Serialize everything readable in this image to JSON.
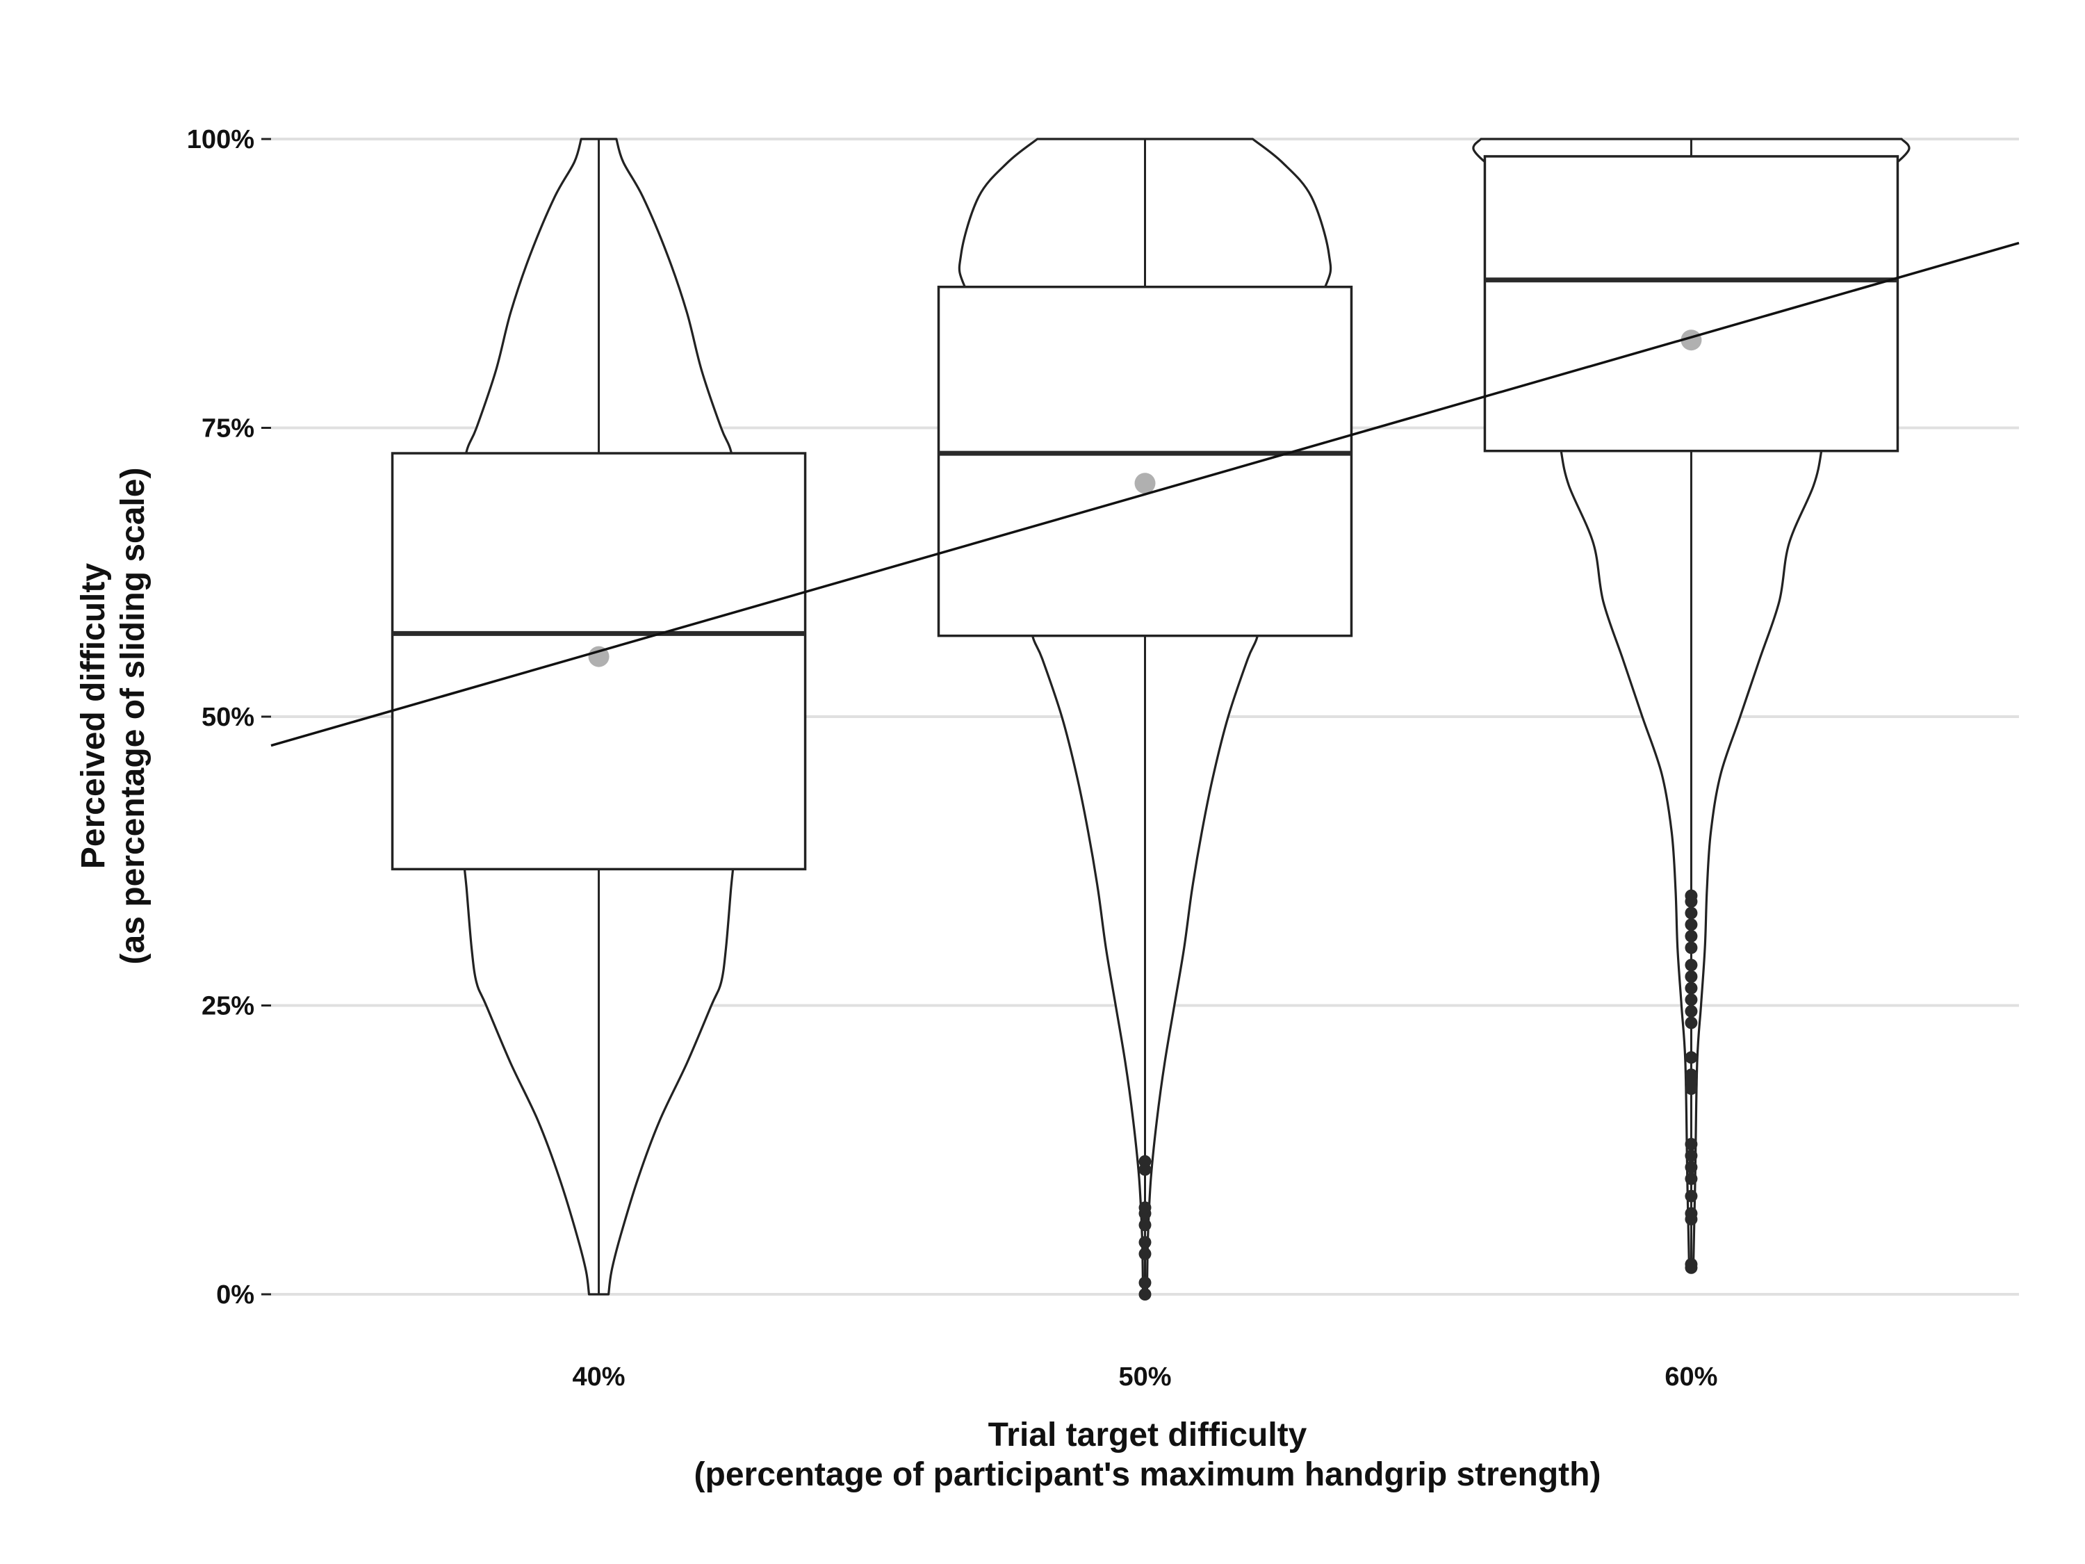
{
  "chart_data": {
    "type": "violin-boxplot",
    "categories": [
      "40%",
      "50%",
      "60%"
    ],
    "category_values": [
      40,
      50,
      60
    ],
    "x_axis": {
      "title_line1": "Trial target difficulty",
      "title_line2": "(percentage of participant's maximum handgrip strength)",
      "tick_labels": [
        "40%",
        "50%",
        "60%"
      ]
    },
    "y_axis": {
      "title_line1": "Perceived difficulty",
      "title_line2": "(as percentage of sliding scale)",
      "tick_values": [
        0,
        25,
        50,
        75,
        100
      ],
      "tick_labels": [
        "0%",
        "25%",
        "50%",
        "75%",
        "100%"
      ],
      "ylim": [
        0,
        100
      ]
    },
    "grid": "horizontal major lines",
    "boxes": [
      {
        "category": "40%",
        "q1": 36.8,
        "median": 57.2,
        "q3": 72.8,
        "mean": 55.2
      },
      {
        "category": "50%",
        "q1": 57.0,
        "median": 72.8,
        "q3": 87.2,
        "mean": 70.2
      },
      {
        "category": "60%",
        "q1": 73.0,
        "median": 87.8,
        "q3": 98.5,
        "mean": 82.6
      }
    ],
    "violins": [
      {
        "category": "40%",
        "profile": [
          [
            0,
            0.01
          ],
          [
            2,
            0.013
          ],
          [
            5,
            0.022
          ],
          [
            10,
            0.04
          ],
          [
            15,
            0.062
          ],
          [
            20,
            0.09
          ],
          [
            25,
            0.115
          ],
          [
            27,
            0.125
          ],
          [
            30,
            0.13
          ],
          [
            35,
            0.135
          ],
          [
            40,
            0.14
          ],
          [
            50,
            0.143
          ],
          [
            60,
            0.143
          ],
          [
            70,
            0.14
          ],
          [
            73,
            0.135
          ],
          [
            75,
            0.125
          ],
          [
            80,
            0.105
          ],
          [
            85,
            0.09
          ],
          [
            90,
            0.07
          ],
          [
            95,
            0.045
          ],
          [
            98,
            0.025
          ],
          [
            100,
            0.018
          ]
        ]
      },
      {
        "category": "50%",
        "profile": [
          [
            0,
            0.002
          ],
          [
            5,
            0.003
          ],
          [
            10,
            0.006
          ],
          [
            15,
            0.012
          ],
          [
            20,
            0.02
          ],
          [
            25,
            0.03
          ],
          [
            30,
            0.04
          ],
          [
            35,
            0.048
          ],
          [
            40,
            0.058
          ],
          [
            45,
            0.07
          ],
          [
            50,
            0.085
          ],
          [
            55,
            0.105
          ],
          [
            57,
            0.115
          ],
          [
            60,
            0.12
          ],
          [
            70,
            0.125
          ],
          [
            80,
            0.135
          ],
          [
            87,
            0.183
          ],
          [
            90,
            0.188
          ],
          [
            95,
            0.17
          ],
          [
            98,
            0.14
          ],
          [
            100,
            0.11
          ]
        ]
      },
      {
        "category": "60%",
        "profile": [
          [
            2,
            0.002
          ],
          [
            10,
            0.004
          ],
          [
            20,
            0.006
          ],
          [
            25,
            0.01
          ],
          [
            30,
            0.014
          ],
          [
            35,
            0.016
          ],
          [
            40,
            0.02
          ],
          [
            45,
            0.03
          ],
          [
            50,
            0.05
          ],
          [
            55,
            0.07
          ],
          [
            60,
            0.09
          ],
          [
            65,
            0.1
          ],
          [
            70,
            0.125
          ],
          [
            73,
            0.133
          ],
          [
            75,
            0.135
          ],
          [
            80,
            0.138
          ],
          [
            90,
            0.14
          ],
          [
            95,
            0.155
          ],
          [
            97,
            0.195
          ],
          [
            99,
            0.222
          ],
          [
            100,
            0.215
          ]
        ]
      }
    ],
    "outliers": [
      {
        "category": "50%",
        "values": [
          0,
          1,
          3.5,
          4.5,
          6,
          7,
          7.5,
          10.8,
          11.5
        ]
      },
      {
        "category": "60%",
        "values": [
          2.3,
          2.6,
          6.5,
          7,
          8.5,
          10,
          11,
          12,
          13,
          17.8,
          18.5,
          19,
          20.5,
          23.5,
          24.5,
          25.5,
          26.5,
          27.5,
          28.5,
          30,
          31,
          32,
          33,
          34,
          34.5
        ]
      }
    ],
    "trend_line": {
      "x": [
        34,
        66
      ],
      "y": [
        47.5,
        91.0
      ]
    },
    "colors": {
      "grid": "#e0e0e0",
      "stroke": "#222222",
      "median": "#2a2a2a",
      "mean_point": "#b0b0b0",
      "outlier": "#2a2a2a",
      "trend": "#111111",
      "text": "#111111"
    }
  }
}
